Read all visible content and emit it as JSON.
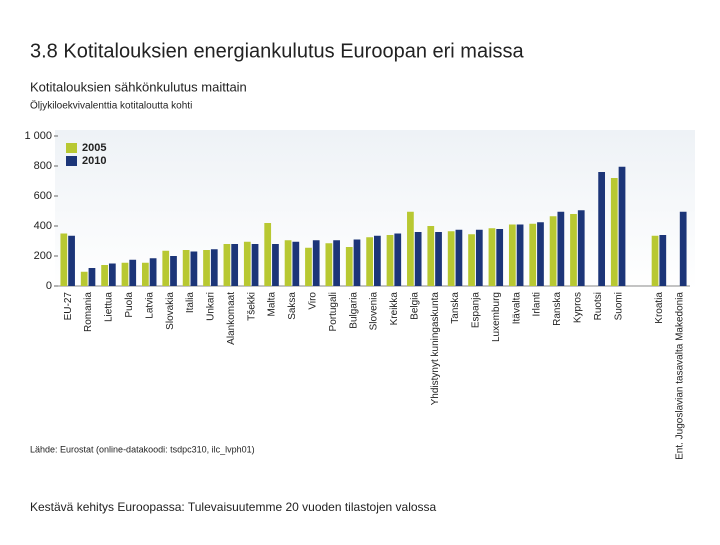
{
  "chart_data": {
    "type": "bar",
    "title": "3.8 Kotitalouksien energiankulutus Euroopan eri maissa",
    "subtitle": "Kotitalouksien sähkönkulutus maittain",
    "y_label": "Öljykiloekvivalenttia kotitaloutta kohti",
    "source": "Lähde: Eurostat (online-datakoodi: tsdpc310, ilc_lvph01)",
    "footer": "Kestävä kehitys Euroopassa: Tulevaisuutemme 20 vuoden tilastojen valossa",
    "categories": [
      "EU-27",
      "Romania",
      "Liettua",
      "Puola",
      "Latvia",
      "Slovakia",
      "Italia",
      "Unkari",
      "Alankomaat",
      "Tšekki",
      "Malta",
      "Saksa",
      "Viro",
      "Portugali",
      "Bulgaria",
      "Slovenia",
      "Kreikka",
      "Belgia",
      "Yhdistynyt kuningaskunta",
      "Tanska",
      "Espanja",
      "Luxemburg",
      "Itävalta",
      "Irlanti",
      "Ranska",
      "Kypros",
      "Ruotsi",
      "Suomi",
      null,
      "Kroatia",
      "Ent. Jugoslavian tasavalta Makedonia"
    ],
    "series": [
      {
        "name": "2005",
        "color": "#b8c832",
        "values": [
          350,
          95,
          140,
          155,
          155,
          235,
          240,
          240,
          280,
          295,
          420,
          305,
          255,
          285,
          260,
          325,
          340,
          495,
          400,
          365,
          345,
          385,
          410,
          415,
          465,
          480,
          null,
          720,
          null,
          335,
          null
        ]
      },
      {
        "name": "2010",
        "color": "#1c3578",
        "values": [
          335,
          120,
          150,
          175,
          185,
          200,
          230,
          245,
          280,
          280,
          280,
          295,
          305,
          305,
          310,
          335,
          350,
          360,
          360,
          375,
          375,
          380,
          410,
          425,
          495,
          505,
          760,
          795,
          null,
          340,
          495
        ]
      }
    ],
    "ylim": [
      0,
      1000
    ],
    "yticks": [
      0,
      200,
      400,
      600,
      800,
      {
        "value": 1000,
        "label": "1 000"
      }
    ],
    "grid": false,
    "legend": "upper left"
  }
}
